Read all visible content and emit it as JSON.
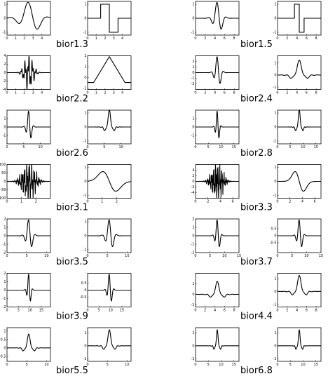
{
  "figure": {
    "labels": [
      "bior1.3",
      "bior1.5",
      "bior2.2",
      "bior2.4",
      "bior2.6",
      "bior2.8",
      "bior3.1",
      "bior3.3",
      "bior3.5",
      "bior3.7",
      "bior3.9",
      "bior4.4",
      "bior5.5",
      "bior6.8"
    ]
  },
  "chart_data": [
    {
      "type": "line",
      "label": "bior1.3",
      "column": "left",
      "row": 1,
      "panels": [
        {
          "role": "left",
          "shape": "wiggle",
          "shape_center": 2.5,
          "shape_width": 1.2,
          "xlim": [
            0,
            5
          ],
          "ylim": [
            -1.2,
            1.2
          ],
          "xticks": [
            0,
            1,
            2,
            3,
            4
          ],
          "yticks": [
            -1,
            0,
            1
          ]
        },
        {
          "role": "right",
          "shape": "haar",
          "shape_center": 2.5,
          "shape_width": 1.0,
          "xlim": [
            0,
            5
          ],
          "ylim": [
            -1.2,
            1.2
          ],
          "xticks": [
            0,
            1,
            2,
            3,
            4
          ],
          "yticks": [
            -1,
            0,
            1
          ]
        }
      ]
    },
    {
      "type": "line",
      "label": "bior1.5",
      "column": "right",
      "row": 1,
      "panels": [
        {
          "role": "left",
          "shape": "wiggle",
          "shape_center": 4.5,
          "shape_width": 1.0,
          "xlim": [
            0,
            9
          ],
          "ylim": [
            -1.2,
            1.2
          ],
          "xticks": [
            0,
            2,
            4,
            6,
            8
          ],
          "yticks": [
            -1,
            0,
            1
          ]
        },
        {
          "role": "right",
          "shape": "haar",
          "shape_center": 4.5,
          "shape_width": 1.0,
          "xlim": [
            0,
            9
          ],
          "ylim": [
            -1.2,
            1.2
          ],
          "xticks": [
            0,
            2,
            4,
            6,
            8
          ],
          "yticks": [
            -1,
            0,
            1
          ]
        }
      ]
    },
    {
      "type": "line",
      "label": "bior2.2",
      "column": "left",
      "row": 2,
      "panels": [
        {
          "role": "left",
          "shape": "spiky",
          "shape_center": 2.5,
          "shape_width": 0.6,
          "xlim": [
            0,
            5
          ],
          "ylim": [
            -4,
            4
          ],
          "xticks": [
            0,
            1,
            2,
            3,
            4
          ],
          "yticks": [
            -4,
            -2,
            0,
            2,
            4
          ]
        },
        {
          "role": "right",
          "shape": "tent",
          "shape_center": 2.5,
          "shape_width": 1.8,
          "xlim": [
            0,
            5
          ],
          "ylim": [
            -1.1,
            2.0
          ],
          "xticks": [
            0,
            1,
            2,
            3,
            4
          ],
          "yticks": [
            -1,
            0,
            1,
            2
          ]
        }
      ]
    },
    {
      "type": "line",
      "label": "bior2.4",
      "column": "right",
      "row": 2,
      "panels": [
        {
          "role": "left",
          "shape": "wiggle",
          "shape_center": 4.5,
          "shape_width": 0.7,
          "xlim": [
            0,
            9
          ],
          "ylim": [
            -3,
            3
          ],
          "xticks": [
            0,
            2,
            4,
            6,
            8
          ],
          "yticks": [
            -2,
            -1,
            0,
            1,
            2
          ]
        },
        {
          "role": "right",
          "shape": "hat",
          "shape_center": 4.5,
          "shape_width": 1.2,
          "xlim": [
            0,
            9
          ],
          "ylim": [
            -1.2,
            1.6
          ],
          "xticks": [
            0,
            2,
            4,
            6,
            8
          ],
          "yticks": [
            -1,
            0,
            1
          ]
        }
      ]
    },
    {
      "type": "line",
      "label": "bior2.6",
      "column": "left",
      "row": 3,
      "panels": [
        {
          "role": "left",
          "shape": "wiggle",
          "shape_center": 6.5,
          "shape_width": 0.8,
          "xlim": [
            0,
            13
          ],
          "ylim": [
            -2,
            2
          ],
          "xticks": [
            0,
            5,
            10
          ],
          "yticks": [
            -1,
            0,
            1
          ]
        },
        {
          "role": "right",
          "shape": "hat",
          "shape_center": 6.5,
          "shape_width": 1.0,
          "xlim": [
            0,
            13
          ],
          "ylim": [
            -1.2,
            1.2
          ],
          "xticks": [
            0,
            5,
            10
          ],
          "yticks": [
            -1,
            0,
            1
          ]
        }
      ]
    },
    {
      "type": "line",
      "label": "bior2.8",
      "column": "right",
      "row": 3,
      "panels": [
        {
          "role": "left",
          "shape": "wiggle",
          "shape_center": 8.5,
          "shape_width": 0.8,
          "xlim": [
            0,
            17
          ],
          "ylim": [
            -2,
            2
          ],
          "xticks": [
            0,
            5,
            10,
            15
          ],
          "yticks": [
            -1,
            0,
            1
          ]
        },
        {
          "role": "right",
          "shape": "hat",
          "shape_center": 8.5,
          "shape_width": 1.0,
          "xlim": [
            0,
            17
          ],
          "ylim": [
            -1.2,
            1.2
          ],
          "xticks": [
            0,
            5,
            10,
            15
          ],
          "yticks": [
            -1,
            0,
            1
          ]
        }
      ]
    },
    {
      "type": "line",
      "label": "bior3.1",
      "column": "left",
      "row": 4,
      "panels": [
        {
          "role": "left",
          "shape": "noisy",
          "shape_center": 1.5,
          "shape_width": 0.45,
          "xlim": [
            0,
            3
          ],
          "ylim": [
            -100,
            100
          ],
          "xticks": [
            0,
            1,
            2
          ],
          "yticks": [
            -100,
            -50,
            0,
            50,
            100
          ]
        },
        {
          "role": "right",
          "shape": "smooth",
          "shape_center": 1.5,
          "shape_width": 0.6,
          "xlim": [
            0,
            3
          ],
          "ylim": [
            -1.2,
            1.2
          ],
          "xticks": [
            0,
            1,
            2
          ],
          "yticks": [
            -1,
            0,
            1
          ]
        }
      ]
    },
    {
      "type": "line",
      "label": "bior3.3",
      "column": "right",
      "row": 4,
      "panels": [
        {
          "role": "left",
          "shape": "noisy",
          "shape_center": 3.5,
          "shape_width": 0.9,
          "xlim": [
            0,
            7
          ],
          "ylim": [
            -6,
            6
          ],
          "xticks": [
            0,
            2,
            4,
            6
          ],
          "yticks": [
            -4,
            -2,
            0,
            2,
            4
          ]
        },
        {
          "role": "right",
          "shape": "smooth",
          "shape_center": 3.5,
          "shape_width": 0.9,
          "xlim": [
            0,
            7
          ],
          "ylim": [
            -1.2,
            1.2
          ],
          "xticks": [
            0,
            2,
            4,
            6
          ],
          "yticks": [
            -1,
            0,
            1
          ]
        }
      ]
    },
    {
      "type": "line",
      "label": "bior3.5",
      "column": "left",
      "row": 5,
      "panels": [
        {
          "role": "left",
          "shape": "wiggle",
          "shape_center": 5.5,
          "shape_width": 0.9,
          "xlim": [
            0,
            11
          ],
          "ylim": [
            -2,
            2
          ],
          "xticks": [
            0,
            5,
            10
          ],
          "yticks": [
            -2,
            -1,
            0,
            1,
            2
          ]
        },
        {
          "role": "right",
          "shape": "wiggle",
          "shape_center": 5.5,
          "shape_width": 1.0,
          "xlim": [
            0,
            11
          ],
          "ylim": [
            -1.2,
            1.2
          ],
          "xticks": [
            0,
            5,
            10
          ],
          "yticks": [
            -1,
            0,
            1
          ]
        }
      ]
    },
    {
      "type": "line",
      "label": "bior3.7",
      "column": "right",
      "row": 5,
      "panels": [
        {
          "role": "left",
          "shape": "wiggle",
          "shape_center": 7.5,
          "shape_width": 0.9,
          "xlim": [
            0,
            15
          ],
          "ylim": [
            -2,
            2
          ],
          "xticks": [
            0,
            5,
            10,
            15
          ],
          "yticks": [
            -2,
            -1,
            0,
            1,
            2
          ]
        },
        {
          "role": "right",
          "shape": "wiggle",
          "shape_center": 7.5,
          "shape_width": 1.0,
          "xlim": [
            0,
            15
          ],
          "ylim": [
            -1.2,
            1.2
          ],
          "xticks": [
            0,
            5,
            10,
            15
          ],
          "yticks": [
            -0.5,
            0,
            0.5
          ]
        }
      ]
    },
    {
      "type": "line",
      "label": "bior3.9",
      "column": "left",
      "row": 6,
      "panels": [
        {
          "role": "left",
          "shape": "wiggle",
          "shape_center": 9.5,
          "shape_width": 0.9,
          "xlim": [
            0,
            19
          ],
          "ylim": [
            -2,
            2
          ],
          "xticks": [
            0,
            5,
            10,
            15
          ],
          "yticks": [
            -2,
            -1,
            0,
            1,
            2
          ]
        },
        {
          "role": "right",
          "shape": "wiggle",
          "shape_center": 9.5,
          "shape_width": 1.1,
          "xlim": [
            0,
            19
          ],
          "ylim": [
            -1.2,
            1.2
          ],
          "xticks": [
            0,
            5,
            10,
            15
          ],
          "yticks": [
            -0.5,
            0,
            0.5
          ]
        }
      ]
    },
    {
      "type": "line",
      "label": "bior4.4",
      "column": "right",
      "row": 6,
      "panels": [
        {
          "role": "left",
          "shape": "hat",
          "shape_center": 4.5,
          "shape_width": 1.0,
          "xlim": [
            0,
            9
          ],
          "ylim": [
            -1.2,
            2
          ],
          "xticks": [
            0,
            2,
            4,
            6,
            8
          ],
          "yticks": [
            -1,
            0,
            1
          ]
        },
        {
          "role": "right",
          "shape": "hat",
          "shape_center": 4.5,
          "shape_width": 1.0,
          "xlim": [
            0,
            9
          ],
          "ylim": [
            -1.2,
            1.4
          ],
          "xticks": [
            0,
            2,
            4,
            6,
            8
          ],
          "yticks": [
            -1,
            0,
            1
          ]
        }
      ]
    },
    {
      "type": "line",
      "label": "bior5.5",
      "column": "left",
      "row": 7,
      "panels": [
        {
          "role": "left",
          "shape": "hat",
          "shape_center": 5.5,
          "shape_width": 1.0,
          "xlim": [
            0,
            11
          ],
          "ylim": [
            -0.8,
            1.2
          ],
          "xticks": [
            0,
            5,
            10
          ],
          "yticks": [
            -0.5,
            0,
            0.5,
            1
          ]
        },
        {
          "role": "right",
          "shape": "hat",
          "shape_center": 5.5,
          "shape_width": 1.0,
          "xlim": [
            0,
            11
          ],
          "ylim": [
            -1.2,
            1.4
          ],
          "xticks": [
            0,
            5,
            10
          ],
          "yticks": [
            -1,
            0,
            1
          ]
        }
      ]
    },
    {
      "type": "line",
      "label": "bior6.8",
      "column": "right",
      "row": 7,
      "panels": [
        {
          "role": "left",
          "shape": "hat",
          "shape_center": 8.5,
          "shape_width": 0.9,
          "xlim": [
            0,
            17
          ],
          "ylim": [
            -1.2,
            1.4
          ],
          "xticks": [
            0,
            5,
            10,
            15
          ],
          "yticks": [
            -1,
            0,
            1
          ]
        },
        {
          "role": "right",
          "shape": "hat",
          "shape_center": 8.5,
          "shape_width": 0.9,
          "xlim": [
            0,
            17
          ],
          "ylim": [
            -1.2,
            1.4
          ],
          "xticks": [
            0,
            5,
            10,
            15
          ],
          "yticks": [
            -1,
            0,
            1
          ]
        }
      ]
    }
  ]
}
